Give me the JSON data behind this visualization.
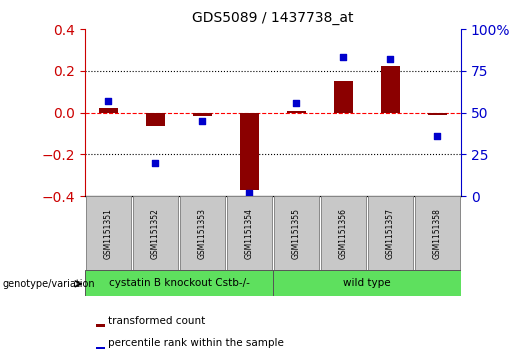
{
  "title": "GDS5089 / 1437738_at",
  "samples": [
    "GSM1151351",
    "GSM1151352",
    "GSM1151353",
    "GSM1151354",
    "GSM1151355",
    "GSM1151356",
    "GSM1151357",
    "GSM1151358"
  ],
  "transformed_count": [
    0.022,
    -0.065,
    -0.018,
    -0.37,
    0.008,
    0.15,
    0.225,
    -0.012
  ],
  "percentile_rank": [
    57,
    20,
    45,
    2,
    56,
    83,
    82,
    36
  ],
  "ylim_left": [
    -0.4,
    0.4
  ],
  "ylim_right": [
    0,
    100
  ],
  "bar_color": "#8B0000",
  "dot_color": "#0000CC",
  "groups": [
    {
      "label": "cystatin B knockout Cstb-/-",
      "start": 0,
      "end": 3,
      "color": "#5EE05E"
    },
    {
      "label": "wild type",
      "start": 4,
      "end": 7,
      "color": "#5EE05E"
    }
  ],
  "genotype_label": "genotype/variation",
  "legend_bar_label": "transformed count",
  "legend_dot_label": "percentile rank within the sample",
  "left_yticks": [
    -0.4,
    -0.2,
    0.0,
    0.2,
    0.4
  ],
  "right_yticks": [
    0,
    25,
    50,
    75,
    100
  ],
  "right_yticklabels": [
    "0",
    "25",
    "50",
    "75",
    "100%"
  ],
  "red_axis_color": "#CC0000",
  "blue_axis_color": "#0000CC",
  "zero_line_color": "#FF0000",
  "dotted_line_color": "#000000",
  "sample_box_color": "#C8C8C8",
  "bar_width": 0.4
}
